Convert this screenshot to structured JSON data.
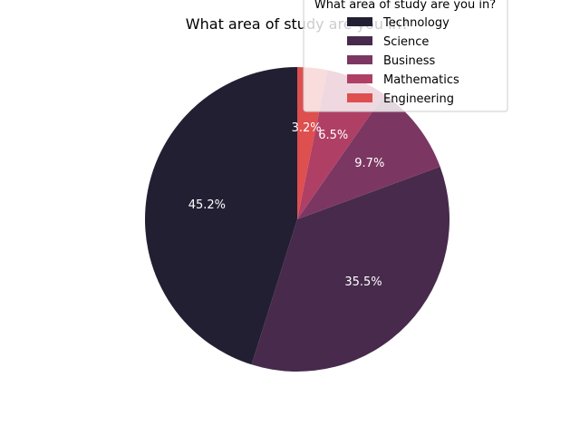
{
  "chart_data": {
    "type": "pie",
    "title": "What area of study are you in?",
    "legend_title": "What area of study are you in?",
    "legend_position": "top-right",
    "start_angle_deg": 90,
    "direction": "counterclockwise",
    "slices": [
      {
        "label": "Technology",
        "value": 45.2,
        "color": "#231f33",
        "pct_label": "45.2%"
      },
      {
        "label": "Science",
        "value": 35.5,
        "color": "#472a4c",
        "pct_label": "35.5%"
      },
      {
        "label": "Business",
        "value": 9.7,
        "color": "#7b3762",
        "pct_label": "9.7%"
      },
      {
        "label": "Mathematics",
        "value": 6.5,
        "color": "#b03f66",
        "pct_label": "6.5%"
      },
      {
        "label": "Engineering",
        "value": 3.2,
        "color": "#de4f4f",
        "pct_label": "3.2%"
      }
    ]
  }
}
